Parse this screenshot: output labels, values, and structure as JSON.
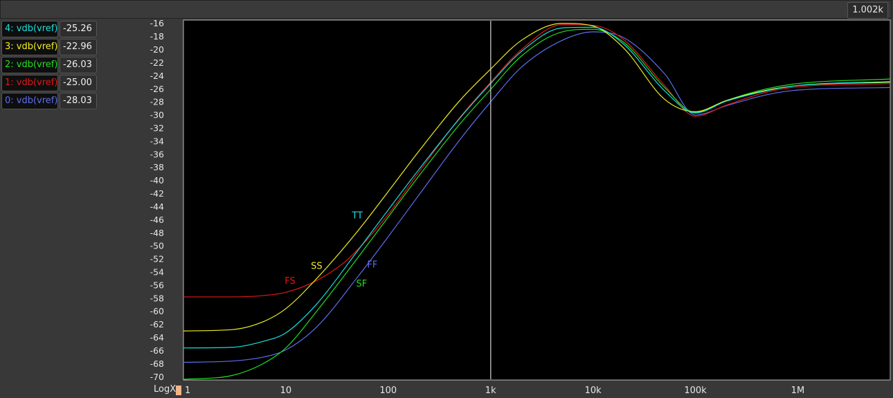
{
  "toolbar": {
    "cursor_readout": "1.002k"
  },
  "traces": [
    {
      "label": "4: vdb(vref)",
      "value": "-25.26",
      "color": "#19e0e0"
    },
    {
      "label": "3: vdb(vref)",
      "value": "-22.96",
      "color": "#f0f020"
    },
    {
      "label": "2: vdb(vref)",
      "value": "-26.03",
      "color": "#20e020"
    },
    {
      "label": "1: vdb(vref)",
      "value": "-25.00",
      "color": "#e01818"
    },
    {
      "label": "0: vdb(vref)",
      "value": "-28.03",
      "color": "#5d6ef0"
    }
  ],
  "axis": {
    "x_mode_label": "LogX"
  },
  "chart_data": {
    "type": "line",
    "x_scale": "log",
    "xlim": [
      1,
      8000000
    ],
    "ylim": [
      -70.5,
      -15.5
    ],
    "x_ticks": [
      {
        "value": 1,
        "label": "1"
      },
      {
        "value": 10,
        "label": "10"
      },
      {
        "value": 100,
        "label": "100"
      },
      {
        "value": 1000,
        "label": "1k"
      },
      {
        "value": 10000,
        "label": "10k"
      },
      {
        "value": 100000,
        "label": "100k"
      },
      {
        "value": 1000000,
        "label": "1M"
      }
    ],
    "y_ticks": [
      -16,
      -18,
      -20,
      -22,
      -24,
      -26,
      -28,
      -30,
      -32,
      -34,
      -36,
      -38,
      -40,
      -42,
      -44,
      -46,
      -48,
      -50,
      -52,
      -54,
      -56,
      -58,
      -60,
      -62,
      -64,
      -66,
      -68,
      -70
    ],
    "cursor_x": 1002,
    "grid": false,
    "series": [
      {
        "id": "4",
        "color": "#19e0e0",
        "x": [
          1,
          3,
          6,
          10,
          20,
          50,
          100,
          200,
          500,
          1000,
          2000,
          5000,
          10000,
          20000,
          50000,
          100000,
          200000,
          500000,
          1000000,
          8000000
        ],
        "y": [
          -65.6,
          -65.5,
          -64.6,
          -63.3,
          -58.9,
          -50.8,
          -44.5,
          -38.3,
          -30.5,
          -25.2,
          -20.3,
          -16.7,
          -16.6,
          -19.2,
          -26.3,
          -29.7,
          -27.9,
          -26.3,
          -25.5,
          -24.9
        ]
      },
      {
        "id": "3",
        "color": "#f0f020",
        "x": [
          1,
          3,
          6,
          10,
          20,
          50,
          100,
          200,
          500,
          1000,
          2000,
          5000,
          10000,
          20000,
          50000,
          100000,
          200000,
          500000,
          1000000,
          8000000
        ],
        "y": [
          -63.0,
          -62.8,
          -61.6,
          -59.6,
          -55.0,
          -47.8,
          -41.7,
          -35.5,
          -27.8,
          -23.0,
          -18.6,
          -16.0,
          -16.4,
          -19.8,
          -27.6,
          -29.5,
          -27.8,
          -26.2,
          -25.5,
          -25.0
        ]
      },
      {
        "id": "2",
        "color": "#20e020",
        "x": [
          1,
          3,
          6,
          10,
          20,
          50,
          100,
          200,
          500,
          1000,
          2000,
          5000,
          10000,
          20000,
          50000,
          100000,
          200000,
          500000,
          1000000,
          8000000
        ],
        "y": [
          -70.4,
          -69.8,
          -68.0,
          -65.6,
          -60.0,
          -51.9,
          -45.6,
          -39.3,
          -31.4,
          -26.1,
          -21.0,
          -17.3,
          -16.9,
          -18.9,
          -25.8,
          -29.6,
          -27.8,
          -26.0,
          -25.2,
          -24.5
        ]
      },
      {
        "id": "1",
        "color": "#e01818",
        "x": [
          1,
          3,
          6,
          10,
          20,
          40,
          100,
          200,
          500,
          1000,
          2000,
          5000,
          10000,
          20000,
          50000,
          100000,
          200000,
          500000,
          1000000,
          8000000
        ],
        "y": [
          -57.8,
          -57.8,
          -57.6,
          -57.1,
          -55.3,
          -52.1,
          -45.2,
          -38.7,
          -30.4,
          -25.0,
          -20.0,
          -16.2,
          -16.3,
          -18.5,
          -25.5,
          -30.2,
          -28.5,
          -26.5,
          -25.7,
          -25.2
        ]
      },
      {
        "id": "0",
        "color": "#5d6ef0",
        "x": [
          1,
          3,
          6,
          10,
          20,
          50,
          100,
          200,
          500,
          1000,
          2000,
          5000,
          10000,
          20000,
          50000,
          100000,
          200000,
          500000,
          1000000,
          8000000
        ],
        "y": [
          -67.8,
          -67.6,
          -67.0,
          -65.9,
          -62.4,
          -54.8,
          -48.6,
          -42.2,
          -33.8,
          -28.0,
          -22.7,
          -18.6,
          -17.3,
          -18.2,
          -23.7,
          -30.0,
          -28.6,
          -26.9,
          -26.2,
          -25.8
        ]
      }
    ],
    "annotations": [
      {
        "text": "TT",
        "x": 50,
        "y": -45.8,
        "color": "#19e0e0"
      },
      {
        "text": "SS",
        "x": 20,
        "y": -53.5,
        "color": "#f0f020"
      },
      {
        "text": "FS",
        "x": 11,
        "y": -55.8,
        "color": "#e01818"
      },
      {
        "text": "FF",
        "x": 70,
        "y": -53.3,
        "color": "#5d6ef0"
      },
      {
        "text": "SF",
        "x": 55,
        "y": -56.2,
        "color": "#20e020"
      }
    ]
  }
}
